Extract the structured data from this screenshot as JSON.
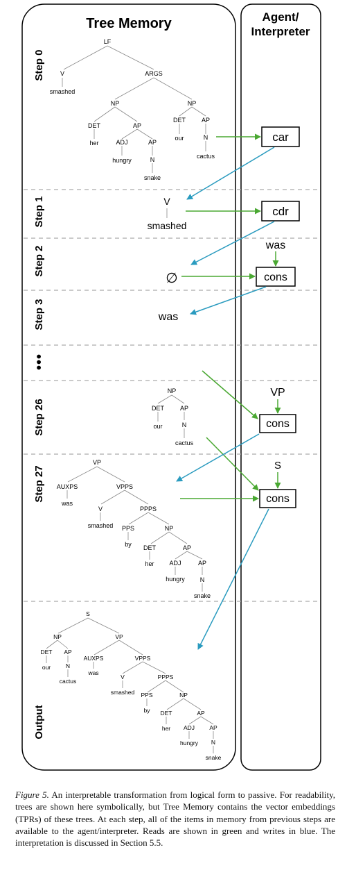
{
  "panels": {
    "tree_memory": "Tree Memory",
    "agent_interpreter": [
      "Agent/",
      "Interpreter"
    ]
  },
  "steps": [
    "Step 0",
    "Step 1",
    "Step 2",
    "Step 3",
    "•••",
    "Step 26",
    "Step 27",
    "Output"
  ],
  "operations": [
    "car",
    "cdr",
    "cons",
    "cons",
    "cons"
  ],
  "operand_labels": [
    "was",
    "VP",
    "S"
  ],
  "memory_items": {
    "step1": [
      "V",
      "smashed"
    ],
    "step2": "∅",
    "step3": "was"
  },
  "trees": {
    "step0": {
      "nodes": [
        "LF",
        "V",
        "smashed",
        "ARGS",
        "NP",
        "DET",
        "her",
        "AP",
        "ADJ",
        "hungry",
        "AP",
        "N",
        "snake",
        "NP",
        "DET",
        "our",
        "AP",
        "N",
        "cactus"
      ]
    },
    "step26": {
      "nodes": [
        "NP",
        "DET",
        "our",
        "AP",
        "N",
        "cactus"
      ]
    },
    "step27": {
      "nodes": [
        "VP",
        "AUXPS",
        "was",
        "VPPS",
        "V",
        "smashed",
        "PPPS",
        "PPS",
        "by",
        "NP",
        "DET",
        "her",
        "AP",
        "ADJ",
        "hungry",
        "AP",
        "N",
        "snake"
      ]
    },
    "output": {
      "nodes": [
        "S",
        "NP",
        "DET",
        "our",
        "AP",
        "N",
        "cactus",
        "VP",
        "AUXPS",
        "was",
        "VPPS",
        "V",
        "smashed",
        "PPPS",
        "PPS",
        "by",
        "NP",
        "DET",
        "her",
        "AP",
        "ADJ",
        "hungry",
        "AP",
        "N",
        "snake"
      ]
    }
  },
  "colors": {
    "read": "#4aa832",
    "write": "#2a9bbf"
  },
  "caption": {
    "label": "Figure 5.",
    "text": " An interpretable transformation from logical form to passive. For readability, trees are shown here symbolically, but Tree Memory contains the vector embeddings (TPRs) of these trees. At each step, all of the items in memory from previous steps are available to the agent/interpreter. Reads are shown in green and writes in blue. The interpretation is discussed in Section 5.5."
  }
}
